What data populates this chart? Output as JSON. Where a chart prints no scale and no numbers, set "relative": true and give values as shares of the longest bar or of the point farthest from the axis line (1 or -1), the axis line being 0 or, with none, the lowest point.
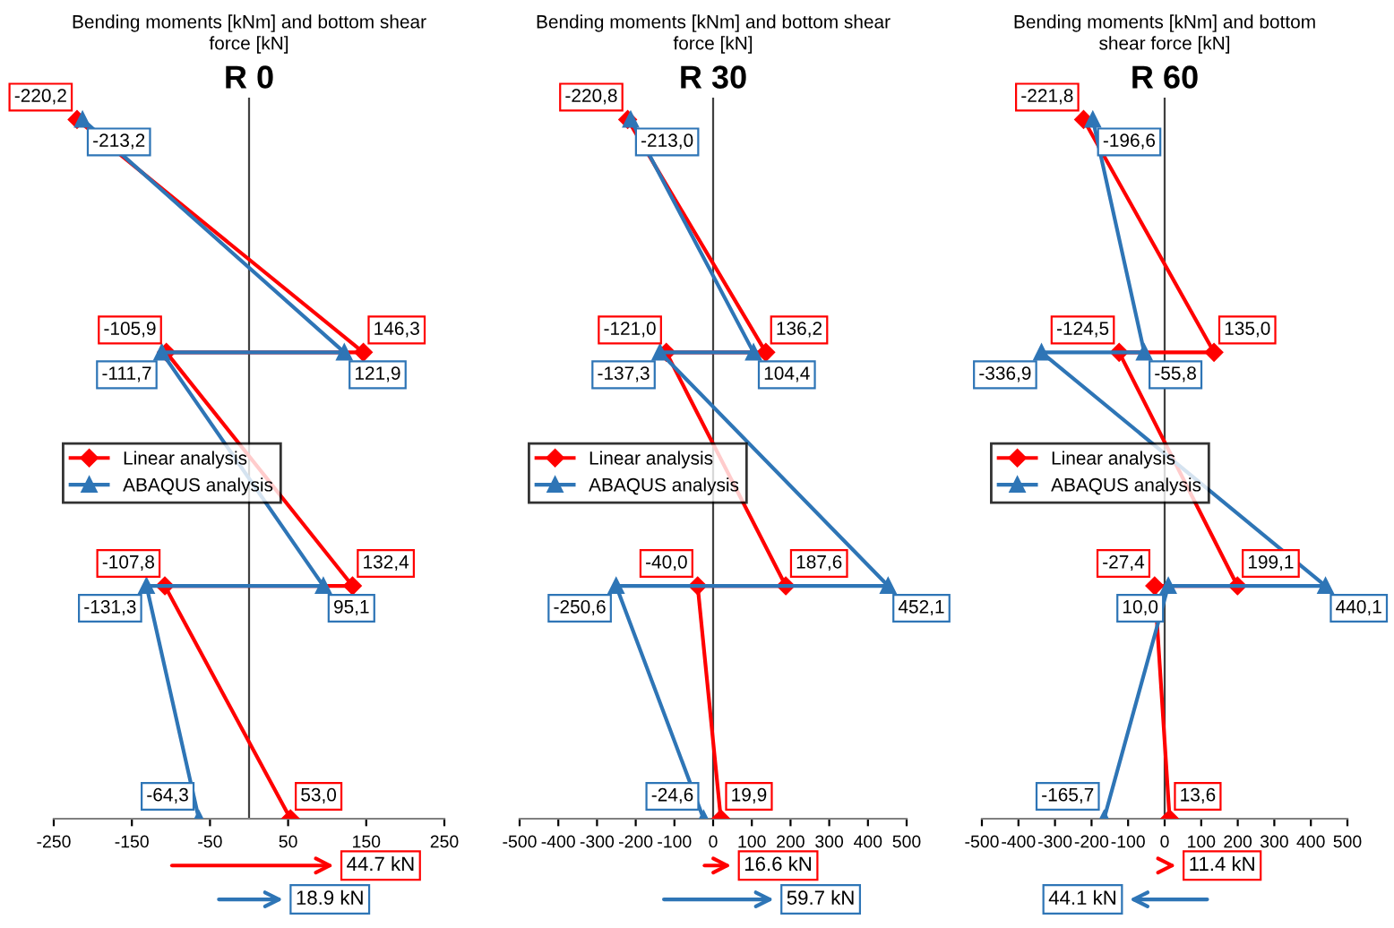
{
  "chart_data": [
    {
      "type": "line",
      "title": "Bending moments [kNm] and bottom shear force [kN]",
      "subtitle": "R 0",
      "relative": true,
      "tick_labels": "x",
      "legend": "left",
      "line_style": "solid",
      "xlim": [
        -250,
        250
      ],
      "xticks": [
        -250,
        -150,
        -50,
        50,
        150,
        250
      ],
      "series": [
        {
          "name": "Linear analysis",
          "color": "#ff0000",
          "marker": "diamond",
          "x": [
            -220.2,
            146.3,
            -105.9,
            132.4,
            -107.8,
            53.0
          ],
          "values": [
            1,
            0.667,
            0.667,
            0.333,
            0.333,
            0
          ]
        },
        {
          "name": "ABAQUS analysis",
          "color": "#2e75b6",
          "marker": "triangle",
          "x": [
            -213.2,
            121.9,
            -111.7,
            95.1,
            -131.3,
            -64.3
          ],
          "values": [
            1,
            0.667,
            0.667,
            0.333,
            0.333,
            0
          ]
        }
      ],
      "annotations": [
        {
          "text": "-220,2",
          "x": -220.2,
          "y": 1
        },
        {
          "text": "146,3",
          "x": 146.3,
          "y": 0.667
        },
        {
          "text": "-105,9",
          "x": -105.9,
          "y": 0.667
        },
        {
          "text": "132,4",
          "x": 132.4,
          "y": 0.333
        },
        {
          "text": "-107,8",
          "x": -107.8,
          "y": 0.333
        },
        {
          "text": "53,0",
          "x": 53.0,
          "y": 0
        },
        {
          "text": "-213,2",
          "x": -213.2,
          "y": 1
        },
        {
          "text": "121,9",
          "x": 121.9,
          "y": 0.667
        },
        {
          "text": "-111,7",
          "x": -111.7,
          "y": 0.667
        },
        {
          "text": "95,1",
          "x": 95.1,
          "y": 0.333
        },
        {
          "text": "-131,3",
          "x": -131.3,
          "y": 0.333
        },
        {
          "text": "-64,3",
          "x": -64.3,
          "y": 0
        },
        "44.7 kN",
        "18.9 kN"
      ]
    },
    {
      "type": "line",
      "title": "Bending moments [kNm] and bottom shear force [kN]",
      "subtitle": "R 30",
      "relative": true,
      "tick_labels": "x",
      "legend": "left",
      "line_style": "solid",
      "xlim": [
        -500,
        500
      ],
      "xticks": [
        -500,
        -400,
        -300,
        -200,
        -100,
        0,
        100,
        200,
        300,
        400,
        500
      ],
      "series": [
        {
          "name": "Linear analysis",
          "color": "#ff0000",
          "marker": "diamond",
          "x": [
            -220.8,
            136.2,
            -121.0,
            187.6,
            -40.0,
            19.9
          ],
          "values": [
            1,
            0.667,
            0.667,
            0.333,
            0.333,
            0
          ]
        },
        {
          "name": "ABAQUS analysis",
          "color": "#2e75b6",
          "marker": "triangle",
          "x": [
            -213.0,
            104.4,
            -137.3,
            452.1,
            -250.6,
            -24.6
          ],
          "values": [
            1,
            0.667,
            0.667,
            0.333,
            0.333,
            0
          ]
        }
      ],
      "annotations": [
        {
          "text": "-220,8",
          "x": -220.8,
          "y": 1
        },
        {
          "text": "136,2",
          "x": 136.2,
          "y": 0.667
        },
        {
          "text": "-121,0",
          "x": -121.0,
          "y": 0.667
        },
        {
          "text": "187,6",
          "x": 187.6,
          "y": 0.333
        },
        {
          "text": "-40,0",
          "x": -40.0,
          "y": 0.333
        },
        {
          "text": "19,9",
          "x": 19.9,
          "y": 0
        },
        {
          "text": "-213,0",
          "x": -213.0,
          "y": 1
        },
        {
          "text": "104,4",
          "x": 104.4,
          "y": 0.667
        },
        {
          "text": "-137,3",
          "x": -137.3,
          "y": 0.667
        },
        {
          "text": "452,1",
          "x": 452.1,
          "y": 0.333
        },
        {
          "text": "-250,6",
          "x": -250.6,
          "y": 0.333
        },
        {
          "text": "-24,6",
          "x": -24.6,
          "y": 0
        },
        "16.6 kN",
        "59.7 kN"
      ]
    },
    {
      "type": "line",
      "title": "Bending moments [kNm] and bottom shear force [kN]",
      "subtitle": "R 60",
      "relative": true,
      "tick_labels": "x",
      "legend": "left",
      "line_style": "solid",
      "xlim": [
        -500,
        500
      ],
      "xticks": [
        -500,
        -400,
        -300,
        -200,
        -100,
        0,
        100,
        200,
        300,
        400,
        500
      ],
      "series": [
        {
          "name": "Linear analysis",
          "color": "#ff0000",
          "marker": "diamond",
          "x": [
            -221.8,
            135.0,
            -124.5,
            199.1,
            -27.4,
            13.6
          ],
          "values": [
            1,
            0.667,
            0.667,
            0.333,
            0.333,
            0
          ]
        },
        {
          "name": "ABAQUS analysis",
          "color": "#2e75b6",
          "marker": "triangle",
          "x": [
            -196.6,
            -55.8,
            -336.9,
            440.1,
            10.0,
            -165.7
          ],
          "values": [
            1,
            0.667,
            0.667,
            0.333,
            0.333,
            0
          ]
        }
      ],
      "annotations": [
        {
          "text": "-221,8",
          "x": -221.8,
          "y": 1
        },
        {
          "text": "135,0",
          "x": 135.0,
          "y": 0.667
        },
        {
          "text": "-124,5",
          "x": -124.5,
          "y": 0.667
        },
        {
          "text": "199,1",
          "x": 199.1,
          "y": 0.333
        },
        {
          "text": "-27,4",
          "x": -27.4,
          "y": 0.333
        },
        {
          "text": "13,6",
          "x": 13.6,
          "y": 0
        },
        {
          "text": "-196,6",
          "x": -196.6,
          "y": 1
        },
        {
          "text": "-55,8",
          "x": -55.8,
          "y": 0.667
        },
        {
          "text": "-336,9",
          "x": -336.9,
          "y": 0.667
        },
        {
          "text": "440,1",
          "x": 440.1,
          "y": 0.333
        },
        {
          "text": "10,0",
          "x": 10.0,
          "y": 0.333
        },
        {
          "text": "-165,7",
          "x": -165.7,
          "y": 0
        },
        "11.4 kN",
        "44.1 kN"
      ]
    }
  ]
}
